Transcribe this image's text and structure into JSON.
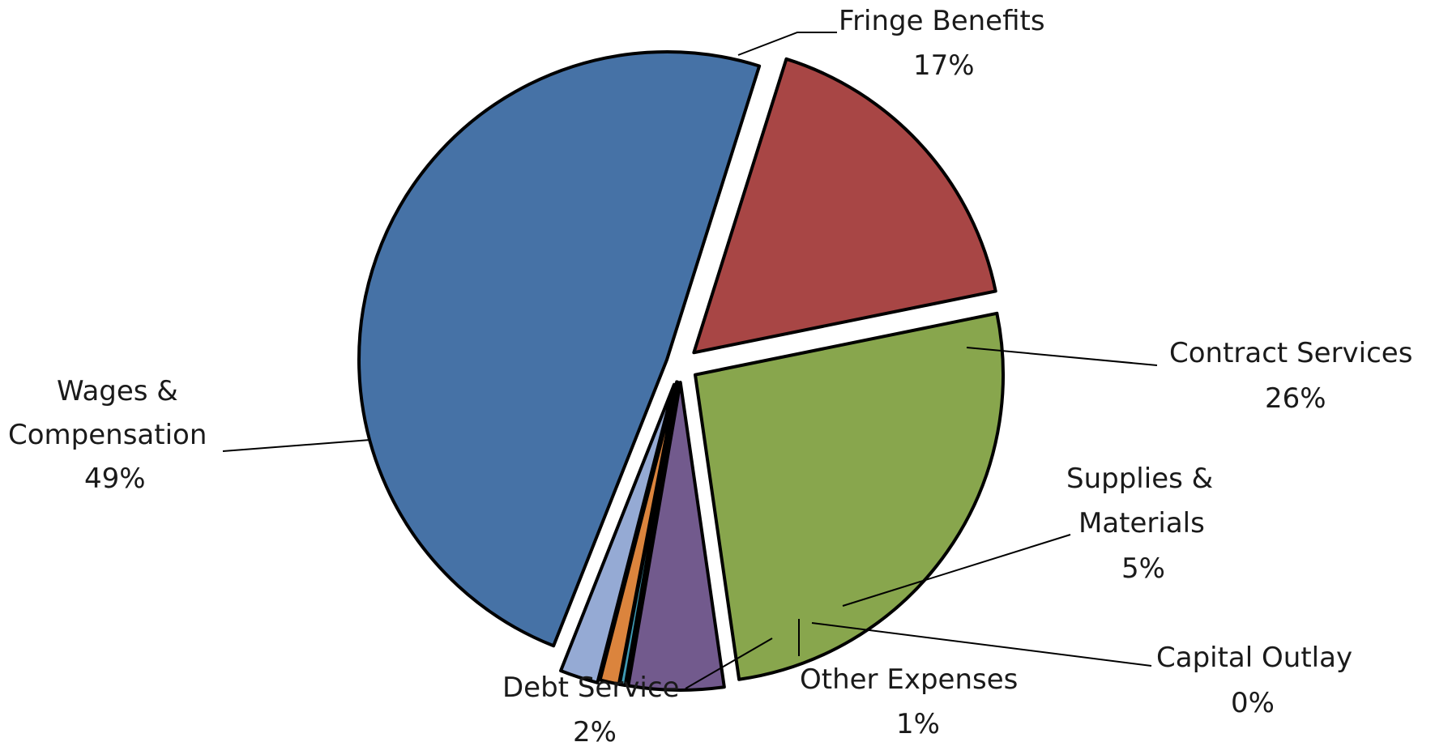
{
  "chart_data": {
    "type": "pie",
    "title": "",
    "legend": "none",
    "slices": [
      {
        "label_lines": [
          "Wages &",
          "Compensation"
        ],
        "percent_label": "49%",
        "value": 49,
        "color": "#4672A6"
      },
      {
        "label_lines": [
          "Fringe Benefits"
        ],
        "percent_label": "17%",
        "value": 17,
        "color": "#A84645"
      },
      {
        "label_lines": [
          "Contract Services"
        ],
        "percent_label": "26%",
        "value": 26,
        "color": "#88A64D"
      },
      {
        "label_lines": [
          "Supplies &",
          "Materials"
        ],
        "percent_label": "5%",
        "value": 5,
        "color": "#725A8D"
      },
      {
        "label_lines": [
          "Capital Outlay"
        ],
        "percent_label": "0%",
        "value": 0.3,
        "color": "#3F9AB4"
      },
      {
        "label_lines": [
          "Other Expenses"
        ],
        "percent_label": "1%",
        "value": 1,
        "color": "#DB843D"
      },
      {
        "label_lines": [
          "Debt Service"
        ],
        "percent_label": "2%",
        "value": 2,
        "color": "#95AAD4"
      }
    ]
  }
}
